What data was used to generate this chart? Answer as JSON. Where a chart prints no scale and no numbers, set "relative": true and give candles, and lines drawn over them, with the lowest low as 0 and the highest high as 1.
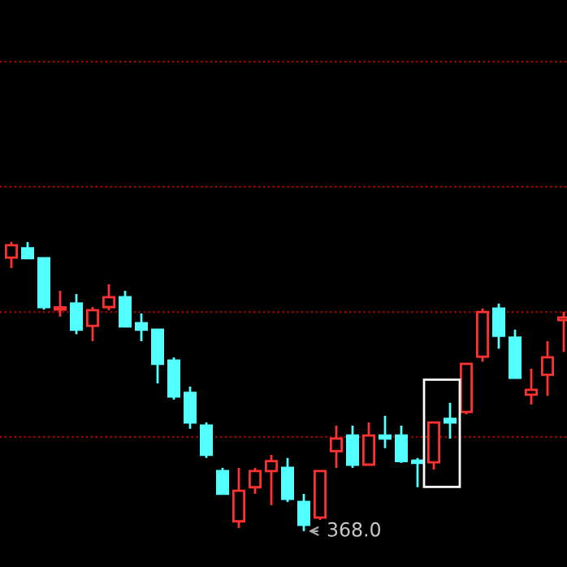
{
  "chart_data": {
    "type": "candlestick",
    "relative": true,
    "categories": [
      null,
      null,
      null,
      null,
      null,
      null,
      null,
      null,
      null,
      null,
      null,
      null,
      null,
      null,
      null,
      null,
      null,
      null,
      null,
      null,
      null,
      null,
      null,
      null,
      null,
      null,
      null,
      null,
      null,
      null,
      null,
      null,
      null,
      null,
      null
    ],
    "ohlc": [
      [
        0.946,
        1.0,
        0.91,
        0.989
      ],
      [
        0.978,
        1.0,
        0.944,
        0.944
      ],
      [
        0.944,
        0.944,
        0.766,
        0.775
      ],
      [
        0.766,
        0.831,
        0.742,
        0.774
      ],
      [
        0.787,
        0.82,
        0.681,
        0.697
      ],
      [
        0.71,
        0.775,
        0.657,
        0.764
      ],
      [
        0.775,
        0.854,
        0.764,
        0.809
      ],
      [
        0.809,
        0.831,
        0.708,
        0.708
      ],
      [
        0.719,
        0.753,
        0.657,
        0.697
      ],
      [
        0.697,
        0.697,
        0.511,
        0.579
      ],
      [
        0.59,
        0.601,
        0.455,
        0.466
      ],
      [
        0.478,
        0.5,
        0.354,
        0.376
      ],
      [
        0.365,
        0.376,
        0.253,
        0.264
      ],
      [
        0.208,
        0.219,
        0.129,
        0.129
      ],
      [
        0.034,
        0.219,
        0.011,
        0.14
      ],
      [
        0.152,
        0.219,
        0.129,
        0.208
      ],
      [
        0.208,
        0.264,
        0.09,
        0.242
      ],
      [
        0.219,
        0.253,
        0.101,
        0.112
      ],
      [
        0.101,
        0.129,
        0.0,
        0.022
      ],
      [
        0.047,
        0.208,
        0.039,
        0.208
      ],
      [
        0.277,
        0.365,
        0.219,
        0.32
      ],
      [
        0.331,
        0.365,
        0.219,
        0.23
      ],
      [
        0.23,
        0.376,
        0.23,
        0.331
      ],
      [
        0.331,
        0.399,
        0.287,
        0.32
      ],
      [
        0.331,
        0.365,
        0.236,
        0.242
      ],
      [
        0.242,
        0.253,
        0.152,
        0.236
      ],
      [
        0.238,
        0.376,
        0.213,
        0.376
      ],
      [
        0.388,
        0.444,
        0.32,
        0.376
      ],
      [
        0.412,
        0.579,
        0.404,
        0.579
      ],
      [
        0.603,
        0.77,
        0.586,
        0.758
      ],
      [
        0.77,
        0.787,
        0.631,
        0.676
      ],
      [
        0.669,
        0.697,
        0.53,
        0.53
      ],
      [
        0.472,
        0.562,
        0.438,
        0.489
      ],
      [
        0.541,
        0.657,
        0.468,
        0.601
      ],
      [
        0.73,
        0.758,
        0.62,
        0.739
      ]
    ],
    "colors": [
      "#ff3232",
      "#54ffff",
      "#54ffff",
      "#ff3232",
      "#54ffff",
      "#ff3232",
      "#ff3232",
      "#54ffff",
      "#54ffff",
      "#54ffff",
      "#54ffff",
      "#54ffff",
      "#54ffff",
      "#54ffff",
      "#ff3232",
      "#ff3232",
      "#ff3232",
      "#54ffff",
      "#54ffff",
      "#ff3232",
      "#ff3232",
      "#54ffff",
      "#ff3232",
      "#54ffff",
      "#54ffff",
      "#54ffff",
      "#ff3232",
      "#54ffff",
      "#ff3232",
      "#ff3232",
      "#54ffff",
      "#54ffff",
      "#ff3232",
      "#ff3232",
      "#ff3232"
    ],
    "ref_lines": [
      {
        "axis": "y",
        "value": 0.326,
        "color": "#b00000",
        "line_style": "dotted"
      },
      {
        "axis": "y",
        "value": 0.758,
        "color": "#b00000",
        "line_style": "dotted"
      },
      {
        "axis": "y",
        "value": 1.191,
        "color": "#b00000",
        "line_style": "dotted"
      },
      {
        "axis": "y",
        "value": 1.624,
        "color": "#b00000",
        "line_style": "dotted"
      }
    ],
    "annotations": [
      "368.0"
    ]
  }
}
